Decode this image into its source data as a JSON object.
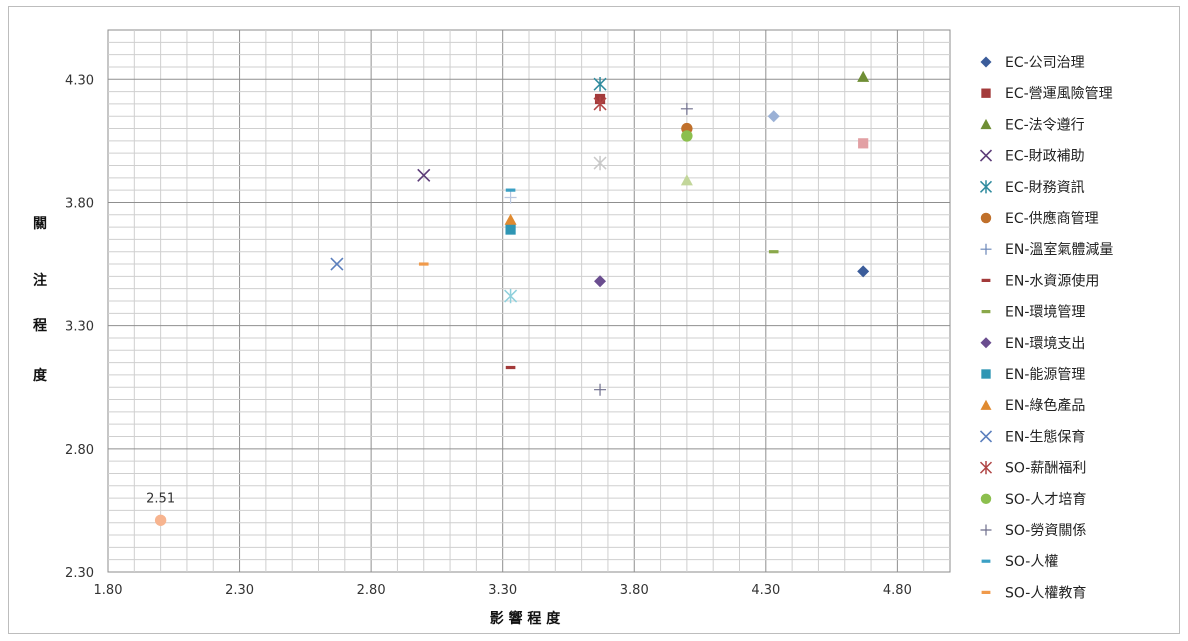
{
  "chart_data": {
    "type": "scatter",
    "xlabel": "影 響 程 度",
    "ylabel_chars": [
      "關",
      "注",
      "程",
      "度"
    ],
    "xlim": [
      1.8,
      5.0
    ],
    "ylim": [
      2.3,
      4.5
    ],
    "x_ticks": [
      "1.80",
      "2.30",
      "2.80",
      "3.30",
      "3.80",
      "4.30",
      "4.80"
    ],
    "y_ticks": [
      "2.30",
      "2.80",
      "3.30",
      "3.80",
      "4.30"
    ],
    "grid": true,
    "legend_position": "right",
    "series": [
      {
        "name": "EC-公司治理",
        "marker": "diamond",
        "color": "#3b5c9a",
        "points": [
          {
            "x": 4.67,
            "y": 3.52,
            "color": "#3b5c9a"
          },
          {
            "x": 4.33,
            "y": 4.15,
            "color": "#9bb1d6"
          }
        ]
      },
      {
        "name": "EC-營運風險管理",
        "marker": "square",
        "color": "#a33a3a",
        "points": [
          {
            "x": 3.67,
            "y": 4.22,
            "color": "#a33a3a"
          },
          {
            "x": 4.67,
            "y": 4.04,
            "color": "#e2a0a4"
          }
        ]
      },
      {
        "name": "EC-法令遵行",
        "marker": "triangle",
        "color": "#6f8e35",
        "points": [
          {
            "x": 4.67,
            "y": 4.31,
            "color": "#6f8e35"
          },
          {
            "x": 4.0,
            "y": 3.89,
            "color": "#c2d69a"
          }
        ]
      },
      {
        "name": "EC-財政補助",
        "marker": "x",
        "color": "#5c3c78",
        "points": [
          {
            "x": 3.0,
            "y": 3.91,
            "color": "#5c3c78"
          }
        ]
      },
      {
        "name": "EC-財務資訊",
        "marker": "star",
        "color": "#2f8b9e",
        "points": [
          {
            "x": 3.67,
            "y": 4.28,
            "color": "#2f8b9e"
          },
          {
            "x": 3.33,
            "y": 3.42,
            "color": "#8fd0dc"
          }
        ]
      },
      {
        "name": "EC-供應商管理",
        "marker": "circle",
        "color": "#c0702b",
        "points": [
          {
            "x": 4.0,
            "y": 4.1,
            "color": "#c0702b"
          }
        ]
      },
      {
        "name": "EN-溫室氣體減量",
        "marker": "plus",
        "color": "#6a86b8",
        "points": [
          {
            "x": 3.33,
            "y": 3.82,
            "color": "#b8c7e0"
          }
        ]
      },
      {
        "name": "EN-水資源使用",
        "marker": "dash",
        "color": "#a33a3a",
        "points": [
          {
            "x": 3.33,
            "y": 3.13,
            "color": "#a33a3a"
          }
        ]
      },
      {
        "name": "EN-環境管理",
        "marker": "dash",
        "color": "#8aa84a",
        "points": [
          {
            "x": 4.33,
            "y": 3.6,
            "color": "#8aa84a"
          }
        ]
      },
      {
        "name": "EN-環境支出",
        "marker": "diamond",
        "color": "#6a4d8f",
        "points": [
          {
            "x": 3.67,
            "y": 3.48,
            "color": "#6a4d8f"
          }
        ]
      },
      {
        "name": "EN-能源管理",
        "marker": "square",
        "color": "#2f96b4",
        "points": [
          {
            "x": 3.33,
            "y": 3.69,
            "color": "#2f96b4"
          }
        ]
      },
      {
        "name": "EN-綠色產品",
        "marker": "triangle",
        "color": "#e08a30",
        "points": [
          {
            "x": 3.33,
            "y": 3.73,
            "color": "#e08a30"
          }
        ]
      },
      {
        "name": "EN-生態保育",
        "marker": "x",
        "color": "#5b7fbd",
        "points": [
          {
            "x": 2.67,
            "y": 3.55,
            "color": "#5b7fbd"
          }
        ]
      },
      {
        "name": "SO-薪酬福利",
        "marker": "star",
        "color": "#b04545",
        "points": [
          {
            "x": 3.67,
            "y": 4.2,
            "color": "#b04545"
          },
          {
            "x": 3.67,
            "y": 3.96,
            "color": "#c9c9c9"
          }
        ]
      },
      {
        "name": "SO-人才培育",
        "marker": "circle",
        "color": "#8cbf4e",
        "points": [
          {
            "x": 4.0,
            "y": 4.07,
            "color": "#8cbf4e"
          }
        ]
      },
      {
        "name": "SO-勞資關係",
        "marker": "plus",
        "color": "#6e6e8c",
        "points": [
          {
            "x": 4.0,
            "y": 4.18,
            "color": "#6e6e8c"
          },
          {
            "x": 3.67,
            "y": 3.04,
            "color": "#6e6e8c"
          }
        ]
      },
      {
        "name": "SO-人權",
        "marker": "dash",
        "color": "#3aa0c4",
        "points": [
          {
            "x": 3.33,
            "y": 3.85,
            "color": "#3aa0c4"
          }
        ]
      },
      {
        "name": "SO-人權教育",
        "marker": "dash",
        "color": "#f09a4b",
        "points": [
          {
            "x": 3.0,
            "y": 3.55,
            "color": "#f09a4b"
          },
          {
            "x": 2.0,
            "y": 2.51,
            "color": "#f7b48f",
            "marker": "circle",
            "label": "2.51"
          }
        ]
      }
    ]
  }
}
